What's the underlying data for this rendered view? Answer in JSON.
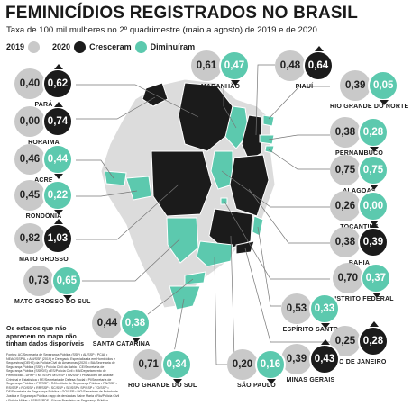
{
  "header": {
    "title": "FEMINICÍDIOS REGISTRADOS NO BRASIL",
    "subtitle": "Taxa de 100 mil mulheres no 2º quadrimestre (maio a agosto) de 2019 e de 2020"
  },
  "legend": {
    "y2019": "2019",
    "y2020": "2020",
    "increased": "Cresceram",
    "decreased": "Diminuíram",
    "colors": {
      "2019": "#c9c9c9",
      "increased": "#1b1b1b",
      "decreased": "#5cc9ae",
      "no_data": "#dcdcdc"
    }
  },
  "states": [
    {
      "name": "PARÁ",
      "v2019": "0,40",
      "v2020": "0,62",
      "trend": "up"
    },
    {
      "name": "RORAIMA",
      "v2019": "0,00",
      "v2020": "0,74",
      "trend": "up"
    },
    {
      "name": "ACRE",
      "v2019": "0,46",
      "v2020": "0,44",
      "trend": "down"
    },
    {
      "name": "RONDÔNIA",
      "v2019": "0,45",
      "v2020": "0,22",
      "trend": "down"
    },
    {
      "name": "MATO GROSSO",
      "v2019": "0,82",
      "v2020": "1,03",
      "trend": "up"
    },
    {
      "name": "MATO GROSSO DO SUL",
      "v2019": "0,73",
      "v2020": "0,65",
      "trend": "down"
    },
    {
      "name": "MARANHÃO",
      "v2019": "0,61",
      "v2020": "0,47",
      "trend": "down"
    },
    {
      "name": "PIAUÍ",
      "v2019": "0,48",
      "v2020": "0,64",
      "trend": "up"
    },
    {
      "name": "RIO GRANDE DO NORTE",
      "v2019": "0,39",
      "v2020": "0,05",
      "trend": "down"
    },
    {
      "name": "PERNAMBUCO",
      "v2019": "0,38",
      "v2020": "0,28",
      "trend": "down"
    },
    {
      "name": "ALAGOAS",
      "v2019": "0,75",
      "v2020": "0,75",
      "trend": "down"
    },
    {
      "name": "TOCANTINS",
      "v2019": "0,26",
      "v2020": "0,00",
      "trend": "down"
    },
    {
      "name": "BAHIA",
      "v2019": "0,38",
      "v2020": "0,39",
      "trend": "up"
    },
    {
      "name": "DISTRITO FEDERAL",
      "v2019": "0,70",
      "v2020": "0,37",
      "trend": "down"
    },
    {
      "name": "ESPÍRITO SANTO",
      "v2019": "0,53",
      "v2020": "0,33",
      "trend": "down"
    },
    {
      "name": "RIO DE JANEIRO",
      "v2019": "0,25",
      "v2020": "0,28",
      "trend": "up"
    },
    {
      "name": "MINAS GERAIS",
      "v2019": "0,39",
      "v2020": "0,43",
      "trend": "up"
    },
    {
      "name": "SÃO PAULO",
      "v2019": "0,20",
      "v2020": "0,16",
      "trend": "down"
    },
    {
      "name": "RIO GRANDE DO SUL",
      "v2019": "0,71",
      "v2020": "0,34",
      "trend": "down"
    },
    {
      "name": "SANTA CATARINA",
      "v2019": "0,44",
      "v2020": "0,38",
      "trend": "down"
    }
  ],
  "note": "Os estados que não aparecem no mapa não tinham dados disponíveis",
  "sources": "Fontes: AC/Secretaria de Segurança Pública (SSP) • AL/SSP • PCAL • NEAC/SSPAL • AM/SSP (2019) e Delegacia Especializada em Homicídios e Sequestros (DEHS) da Polícia Civil do Amazonas (2020) • BA/Secretaria de Segurança Pública (SSP) • Polícia Civil da Bahia • CE/Secretaria de Segurança Pública (SSPDS) • ES/Polícia Civil • MA/Departamento de Feminicídio - DHPP • MT/SSP • MS/SSP • PA/SSP • PB/Núcleo de Análise Criminal e Estatística • PE/Secretaria de Defesa Social • PI/Secretaria de Segurança Pública • PR/SSP • RJ/Instituto de Segurança Pública • RN/SSP • RS/SSP • RO/SSP • RR/SSP • SC/SSP • SE/SSP • SP/SSP • TO/SSP • DF/Secretaria de Segurança Pública • GO/SSP • MG/Secretaria de Estado de Justiça e Segurança Pública • app de denúncias Salve Maria • Rio/Polícia Civil • Polícia Militar • SSP/SSPDF • Fórum Brasileiro de Segurança Pública"
}
